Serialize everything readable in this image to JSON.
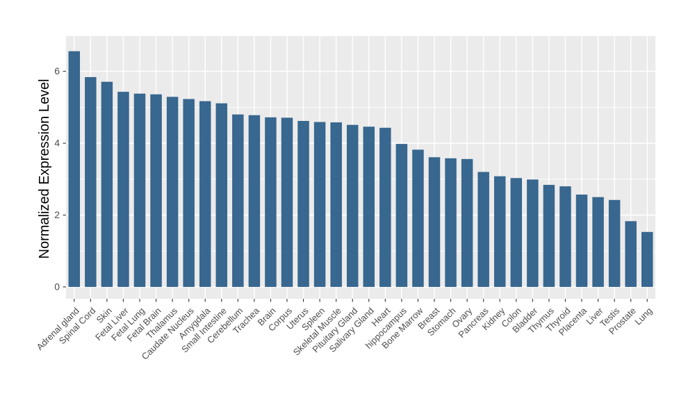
{
  "figure": {
    "background": "#FFFFFF"
  },
  "chart_data": {
    "type": "bar",
    "title": "",
    "xlabel": "",
    "ylabel": "Normalized Expression Level",
    "legend": "none",
    "grid": "on",
    "categories": [
      "Adrenal gland",
      "Spinal Cord",
      "Skin",
      "Fetal Liver",
      "Fetal Lung",
      "Fetal Brain",
      "Thalamus",
      "Caudate Nucleus",
      "Amygdala",
      "Small Intestine",
      "Cerebellum",
      "Trachea",
      "Brain",
      "Corpus",
      "Uterus",
      "Spleen",
      "Skeletal Muscle",
      "Pituitary Gland",
      "Salivary Gland",
      "Heart",
      "hippocampus",
      "Bone Marrow",
      "Breast",
      "Stomach",
      "Ovary",
      "Pancreas",
      "Kidney",
      "Colon",
      "Bladder",
      "Thymus",
      "Thyroid",
      "Placenta",
      "Liver",
      "Testis",
      "Prostate",
      "Lung"
    ],
    "values": [
      6.56,
      5.84,
      5.71,
      5.43,
      5.38,
      5.36,
      5.29,
      5.23,
      5.17,
      5.11,
      4.8,
      4.78,
      4.72,
      4.71,
      4.62,
      4.59,
      4.58,
      4.51,
      4.46,
      4.43,
      3.98,
      3.82,
      3.61,
      3.58,
      3.56,
      3.2,
      3.08,
      3.03,
      2.99,
      2.84,
      2.8,
      2.57,
      2.5,
      2.42,
      1.83,
      1.53
    ],
    "yticks": [
      0,
      2,
      4,
      6
    ],
    "yticks_minor": [
      1,
      3,
      5
    ],
    "ylim": [
      -0.33,
      6.98
    ],
    "bar_width_frac": 0.7,
    "bar_color": "#38678F",
    "panel_background": "#EBEBEB",
    "grid_color": "#FFFFFF",
    "tick_mark_color": "#333333",
    "tick_label_color": "#4D4D4D",
    "axis_title_color": "#000000"
  }
}
